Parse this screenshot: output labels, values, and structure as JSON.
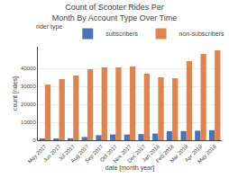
{
  "chart_data": {
    "type": "bar",
    "title": "Count of Scooter Rides Per Month By Account Type Over Time",
    "xlabel": "date [month year]",
    "ylabel": "count [rides]",
    "legend_title": "rider type",
    "categories": [
      "May 2017",
      "Jun 2017",
      "Jul 2017",
      "Aug 2017",
      "Sep 2017",
      "Oct 2017",
      "Nov 2017",
      "Dec 2017",
      "Jan 2018",
      "Feb 2018",
      "Mar 2018",
      "Apr 2018",
      "May 2018"
    ],
    "series": [
      {
        "name": "subscribers",
        "color": "#4C72B0",
        "values": [
          900,
          1000,
          1100,
          1800,
          2800,
          3200,
          3200,
          3400,
          3700,
          5000,
          5100,
          5300,
          5600
        ]
      },
      {
        "name": "non-subscribers",
        "color": "#DD8452",
        "values": [
          31000,
          34000,
          36000,
          39500,
          40500,
          40500,
          41000,
          37000,
          35000,
          34500,
          44000,
          48000,
          50000
        ]
      }
    ],
    "ylim": [
      0,
      52000
    ],
    "yticks": [
      0,
      10000,
      20000,
      30000,
      40000
    ],
    "grid": true,
    "legend": "upper left"
  }
}
